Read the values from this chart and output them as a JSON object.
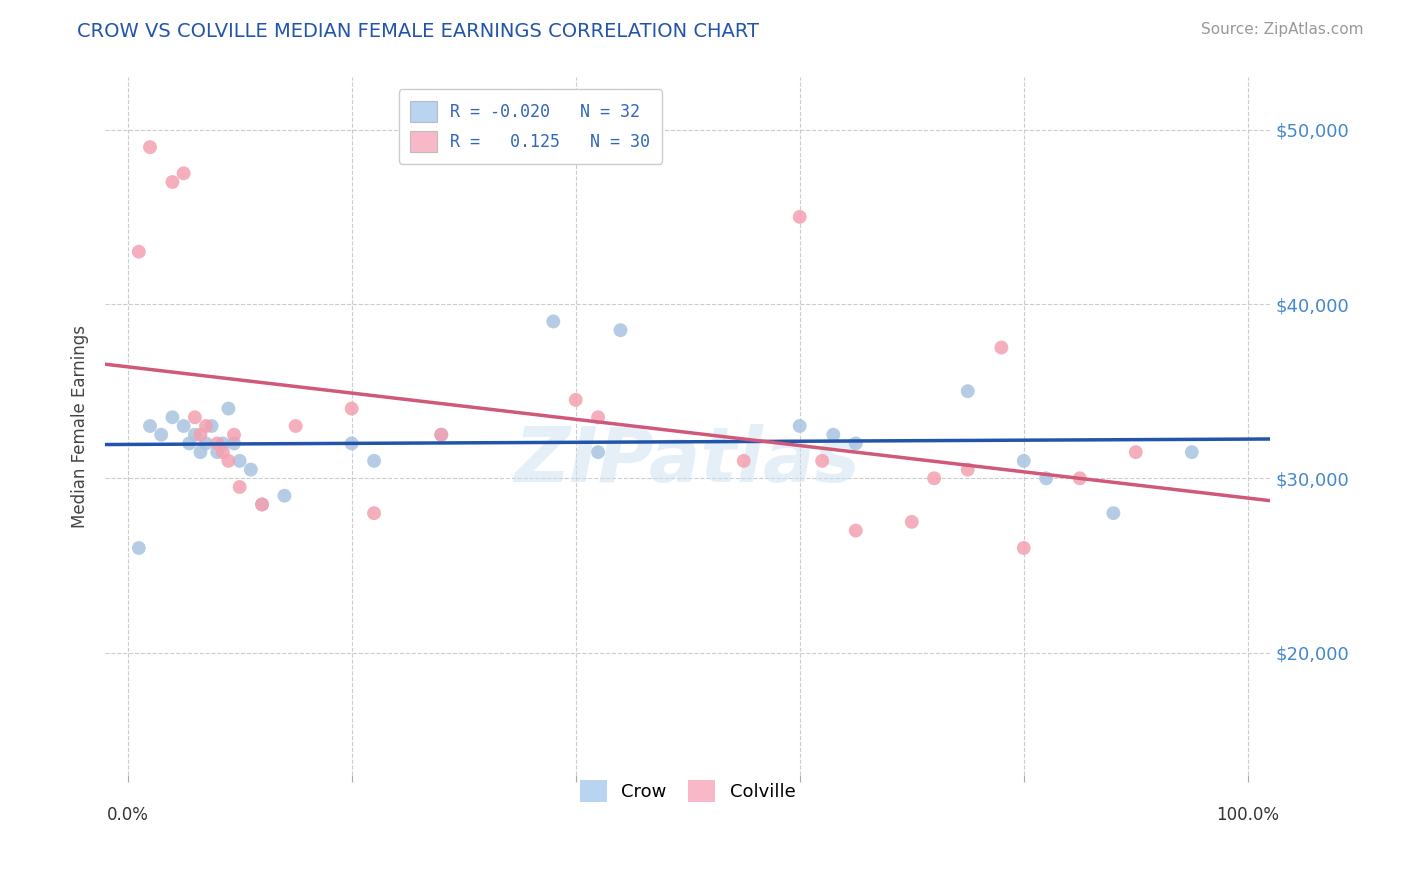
{
  "title": "CROW VS COLVILLE MEDIAN FEMALE EARNINGS CORRELATION CHART",
  "source": "Source: ZipAtlas.com",
  "ylabel": "Median Female Earnings",
  "y_ticks": [
    20000,
    30000,
    40000,
    50000
  ],
  "y_tick_labels": [
    "$20,000",
    "$30,000",
    "$40,000",
    "$50,000"
  ],
  "y_min": 13000,
  "y_max": 53000,
  "x_min": -0.02,
  "x_max": 1.02,
  "crow_R": -0.02,
  "crow_N": 32,
  "colville_R": 0.125,
  "colville_N": 30,
  "crow_color": "#a8c4e0",
  "crow_line_color": "#2255aa",
  "colville_color": "#f4a0b0",
  "colville_line_color": "#d05878",
  "legend_crow_fill": "#b8d4f0",
  "legend_colville_fill": "#f8b8c8",
  "crow_x": [
    0.01,
    0.02,
    0.03,
    0.04,
    0.05,
    0.055,
    0.06,
    0.065,
    0.07,
    0.075,
    0.08,
    0.085,
    0.09,
    0.095,
    0.1,
    0.11,
    0.12,
    0.14,
    0.2,
    0.22,
    0.28,
    0.38,
    0.42,
    0.44,
    0.6,
    0.63,
    0.65,
    0.75,
    0.8,
    0.82,
    0.88,
    0.95
  ],
  "crow_y": [
    26000,
    33000,
    32500,
    33500,
    33000,
    32000,
    32500,
    31500,
    32000,
    33000,
    31500,
    32000,
    34000,
    32000,
    31000,
    30500,
    28500,
    29000,
    32000,
    31000,
    32500,
    39000,
    31500,
    38500,
    33000,
    32500,
    32000,
    35000,
    31000,
    30000,
    28000,
    31500
  ],
  "colville_x": [
    0.01,
    0.02,
    0.04,
    0.05,
    0.06,
    0.065,
    0.07,
    0.08,
    0.085,
    0.09,
    0.095,
    0.1,
    0.12,
    0.15,
    0.2,
    0.22,
    0.28,
    0.4,
    0.42,
    0.55,
    0.6,
    0.62,
    0.65,
    0.7,
    0.72,
    0.75,
    0.78,
    0.8,
    0.85,
    0.9
  ],
  "colville_y": [
    43000,
    49000,
    47000,
    47500,
    33500,
    32500,
    33000,
    32000,
    31500,
    31000,
    32500,
    29500,
    28500,
    33000,
    34000,
    28000,
    32500,
    34500,
    33500,
    31000,
    45000,
    31000,
    27000,
    27500,
    30000,
    30500,
    37500,
    26000,
    30000,
    31500
  ],
  "crow_marker_size": 100,
  "colville_marker_size": 100,
  "watermark": "ZIPatlas",
  "background_color": "#ffffff",
  "grid_color": "#cccccc"
}
